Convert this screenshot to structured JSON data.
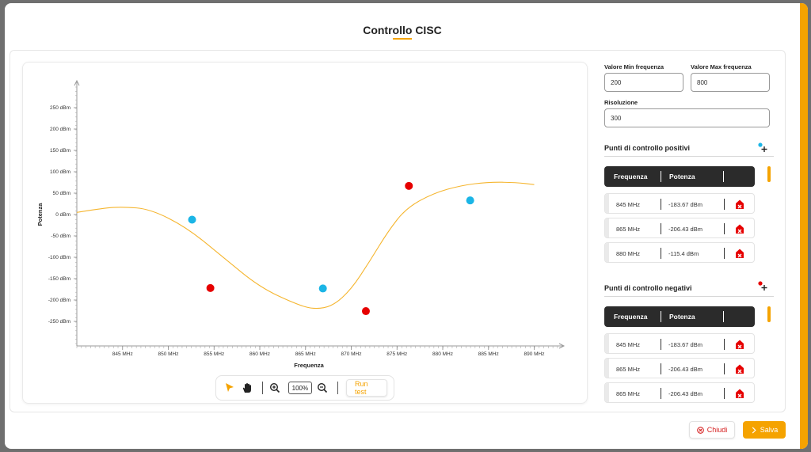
{
  "dialog": {
    "title": "Controllo CISC"
  },
  "colors": {
    "accent": "#f5a300",
    "positive": "#1bb5e6",
    "negative": "#e60000",
    "curve": "#f5b52e"
  },
  "chart_data": {
    "type": "scatter",
    "xlabel": "Frequenza",
    "ylabel": "Potenza",
    "x_ticks": [
      "845 MHz",
      "850 MHz",
      "855 MHz",
      "860 MHz",
      "865 MHz",
      "870 MHz",
      "875 MHz",
      "880 MHz",
      "885 MHz",
      "890 MHz"
    ],
    "y_ticks": [
      "250 dBm",
      "200 dBm",
      "150 dBm",
      "100 dBm",
      "50 dBm",
      "0 dBm",
      "-50 dBm",
      "-100 dBm",
      "-150 dBm",
      "-200 dBm",
      "-250 dBm"
    ],
    "xlim": [
      840,
      893
    ],
    "ylim": [
      -300,
      300
    ],
    "series": [
      {
        "points": [
          [
            852.6,
            -12
          ],
          [
            866.9,
            -173
          ],
          [
            883.0,
            33
          ]
        ]
      },
      {
        "points": [
          [
            854.6,
            -172
          ],
          [
            871.6,
            -226
          ],
          [
            876.3,
            67
          ]
        ]
      },
      {
        "line": [
          [
            840,
            5
          ],
          [
            843,
            15
          ],
          [
            845,
            18
          ],
          [
            848,
            13
          ],
          [
            852,
            -30
          ],
          [
            856,
            -100
          ],
          [
            860,
            -170
          ],
          [
            864,
            -210
          ],
          [
            866,
            -222
          ],
          [
            868,
            -214
          ],
          [
            870,
            -175
          ],
          [
            872,
            -110
          ],
          [
            874,
            -40
          ],
          [
            876,
            15
          ],
          [
            879,
            50
          ],
          [
            882,
            68
          ],
          [
            885,
            76
          ],
          [
            888,
            75
          ],
          [
            890,
            70
          ]
        ]
      }
    ]
  },
  "toolbar": {
    "zoom_value": "100%",
    "run_label": "Run test",
    "icons": [
      "select-arrow-icon",
      "hand-pan-icon",
      "zoom-in-icon",
      "zoom-out-icon"
    ]
  },
  "form": {
    "min_label": "Valore Min frequenza",
    "min_value": "200",
    "max_label": "Valore Max frequenza",
    "max_value": "800",
    "res_label": "Risoluzione",
    "res_value": "300"
  },
  "positive": {
    "title": "Punti di controllo positivi",
    "headers": [
      "Frequenza",
      "Potenza"
    ],
    "rows": [
      {
        "freq": "845 MHz",
        "power": "-183.67 dBm"
      },
      {
        "freq": "865 MHz",
        "power": "-206.43 dBm"
      },
      {
        "freq": "880 MHz",
        "power": "-115.4 dBm"
      }
    ]
  },
  "negative": {
    "title": "Punti di controllo negativi",
    "headers": [
      "Frequenza",
      "Potenza"
    ],
    "rows": [
      {
        "freq": "845 MHz",
        "power": "-183.67 dBm"
      },
      {
        "freq": "865 MHz",
        "power": "-206.43 dBm"
      },
      {
        "freq": "865 MHz",
        "power": "-206.43 dBm"
      }
    ]
  },
  "footer": {
    "close_label": "Chiudi",
    "save_label": "Salva"
  }
}
